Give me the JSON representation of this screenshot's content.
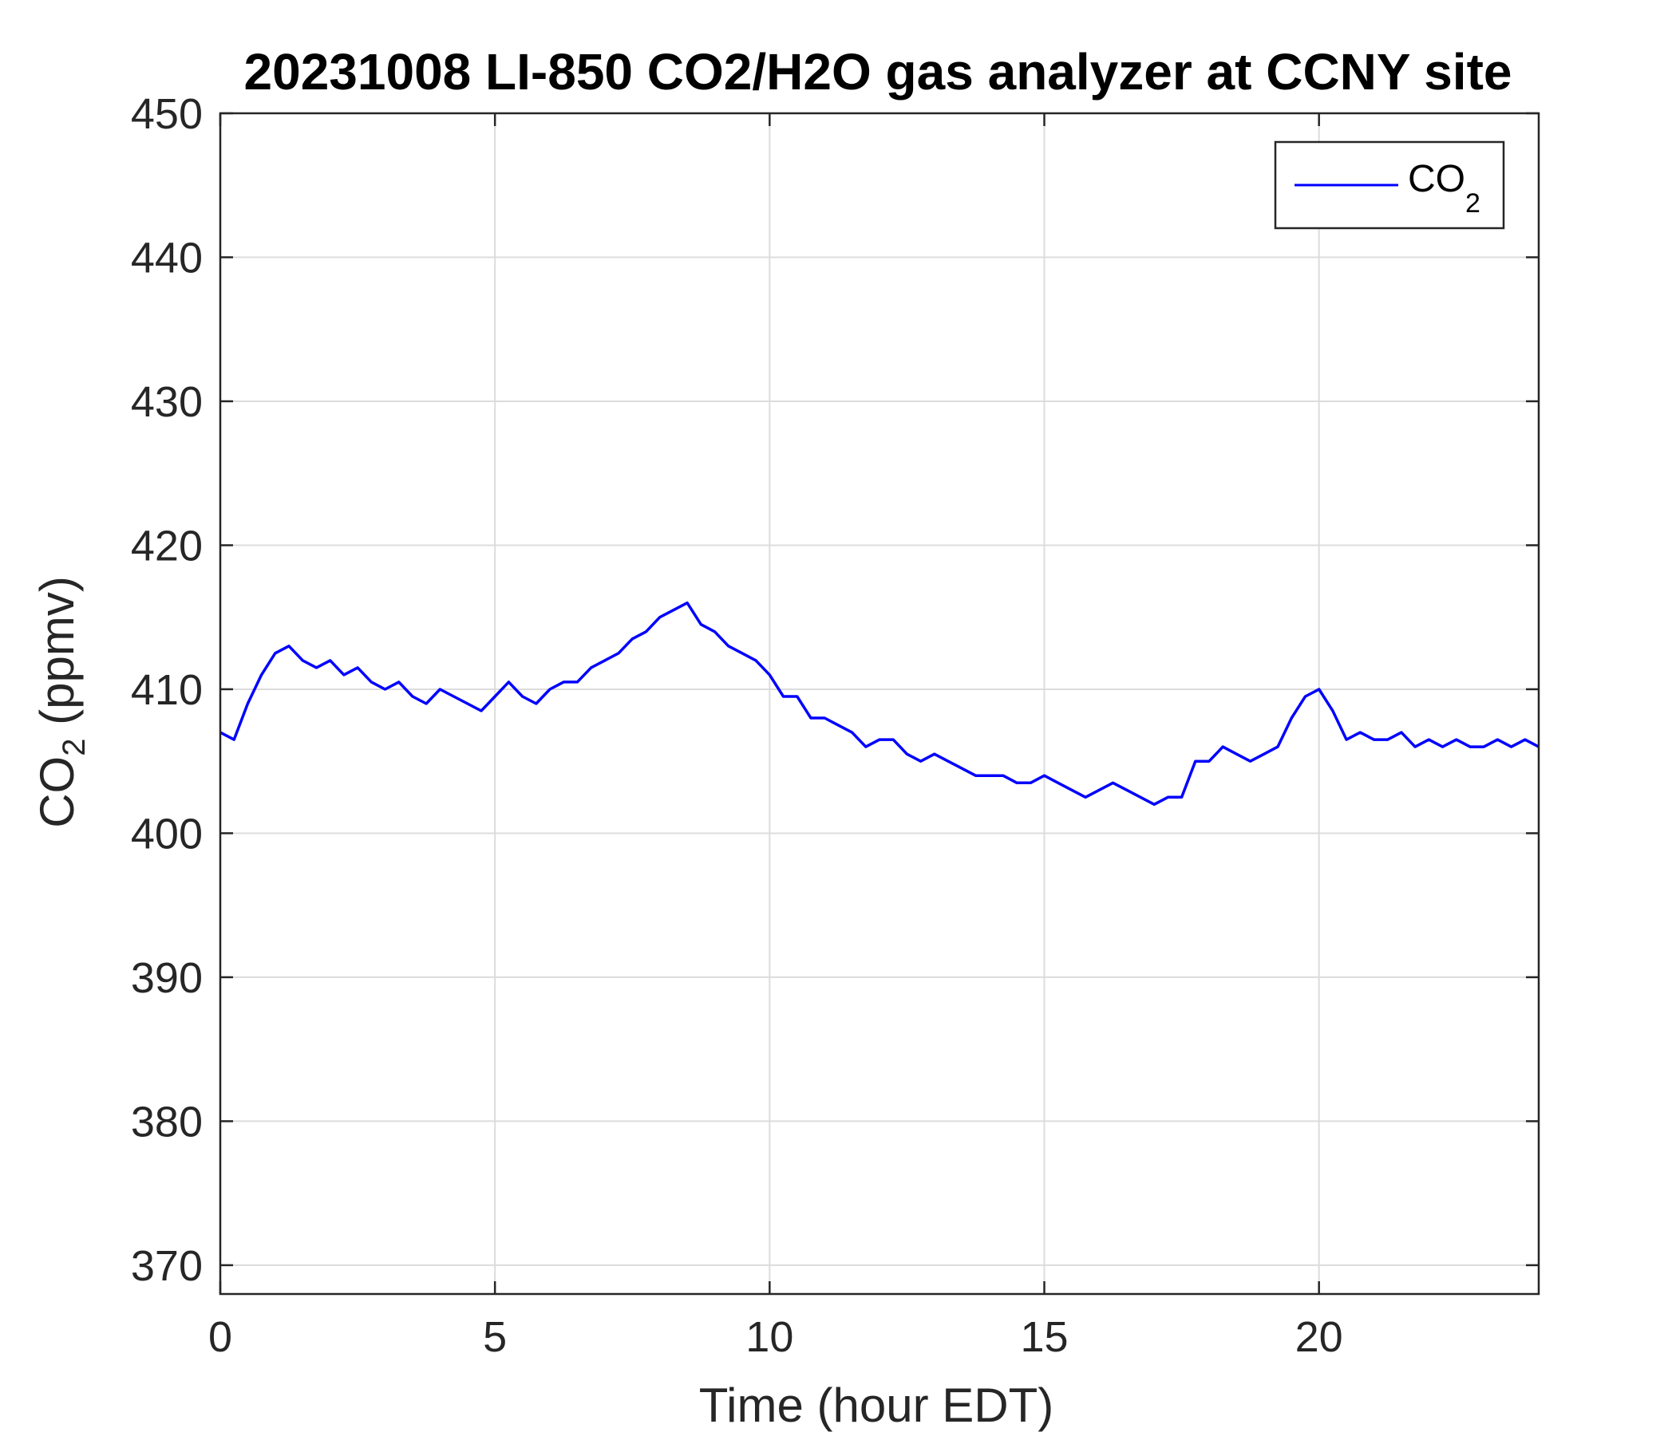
{
  "chart_data": {
    "type": "line",
    "title": "20231008 LI-850 CO2/H2O gas analyzer at CCNY site",
    "xlabel": "Time (hour EDT)",
    "ylabel": {
      "main": "CO",
      "sub": "2",
      "rest": " (ppmv)"
    },
    "xlim": [
      0,
      24
    ],
    "ylim": [
      368,
      450
    ],
    "xticks": [
      0,
      5,
      10,
      15,
      20
    ],
    "yticks": [
      370,
      380,
      390,
      400,
      410,
      420,
      430,
      440,
      450
    ],
    "grid": true,
    "legend_placement": "top-right",
    "series": [
      {
        "name": {
          "main": "CO",
          "sub": "2"
        },
        "color": "#0000ff",
        "x": [
          0,
          0.25,
          0.5,
          0.75,
          1,
          1.25,
          1.5,
          1.75,
          2,
          2.25,
          2.5,
          2.75,
          3,
          3.25,
          3.5,
          3.75,
          4,
          4.25,
          4.5,
          4.75,
          5,
          5.25,
          5.5,
          5.75,
          6,
          6.25,
          6.5,
          6.75,
          7,
          7.25,
          7.5,
          7.75,
          8,
          8.25,
          8.5,
          8.75,
          9,
          9.25,
          9.5,
          9.75,
          10,
          10.25,
          10.5,
          10.75,
          11,
          11.25,
          11.5,
          11.75,
          12,
          12.25,
          12.5,
          12.75,
          13,
          13.25,
          13.5,
          13.75,
          14,
          14.25,
          14.5,
          14.75,
          15,
          15.25,
          15.5,
          15.75,
          16,
          16.25,
          16.5,
          16.75,
          17,
          17.25,
          17.5,
          17.75,
          18,
          18.25,
          18.5,
          18.75,
          19,
          19.25,
          19.5,
          19.75,
          20,
          20.25,
          20.5,
          20.75,
          21,
          21.25,
          21.5,
          21.75,
          22,
          22.25,
          22.5,
          22.75,
          23,
          23.25,
          23.5,
          23.75,
          24
        ],
        "y": [
          407,
          406.5,
          409,
          411,
          412.5,
          413,
          412,
          411.5,
          412,
          411,
          411.5,
          410.5,
          410,
          410.5,
          409.5,
          409,
          410,
          409.5,
          409,
          408.5,
          409.5,
          410.5,
          409.5,
          409,
          410,
          410.5,
          410.5,
          411.5,
          412,
          412.5,
          413.5,
          414,
          415,
          415.5,
          416,
          414.5,
          414,
          413,
          412.5,
          412,
          411,
          409.5,
          409.5,
          408,
          408,
          407.5,
          407,
          406,
          406.5,
          406.5,
          405.5,
          405,
          405.5,
          405,
          404.5,
          404,
          404,
          404,
          403.5,
          403.5,
          404,
          403.5,
          403,
          402.5,
          403,
          403.5,
          403,
          402.5,
          402,
          402.5,
          402.5,
          405,
          405,
          406,
          405.5,
          405,
          405.5,
          406,
          408,
          409.5,
          410,
          408.5,
          406.5,
          407,
          406.5,
          406.5,
          407,
          406,
          406.5,
          406,
          406.5,
          406,
          406,
          406.5,
          406,
          406.5,
          406
        ]
      }
    ]
  }
}
